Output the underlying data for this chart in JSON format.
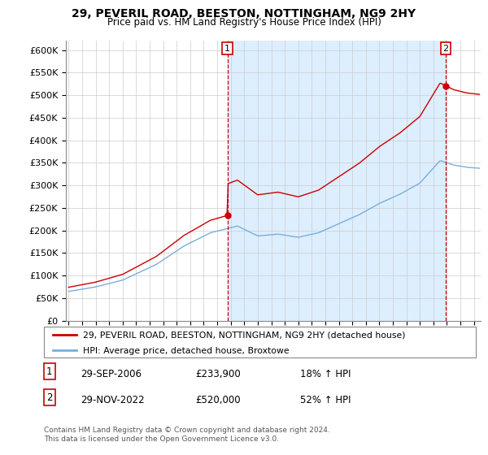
{
  "title": "29, PEVERIL ROAD, BEESTON, NOTTINGHAM, NG9 2HY",
  "subtitle": "Price paid vs. HM Land Registry's House Price Index (HPI)",
  "ylim": [
    0,
    620000
  ],
  "yticks": [
    0,
    50000,
    100000,
    150000,
    200000,
    250000,
    300000,
    350000,
    400000,
    450000,
    500000,
    550000,
    600000
  ],
  "ytick_labels": [
    "£0",
    "£50K",
    "£100K",
    "£150K",
    "£200K",
    "£250K",
    "£300K",
    "£350K",
    "£400K",
    "£450K",
    "£500K",
    "£550K",
    "£600K"
  ],
  "xlim_start": 1994.8,
  "xlim_end": 2025.5,
  "sale1_x": 2006.75,
  "sale1_y": 233900,
  "sale1_label": "1",
  "sale2_x": 2022.917,
  "sale2_y": 520000,
  "sale2_label": "2",
  "red_line_color": "#cc0000",
  "blue_line_color": "#7aaedc",
  "shade_color": "#ddeeff",
  "marker_color": "#cc0000",
  "vline_color": "#cc0000",
  "grid_color": "#cccccc",
  "background_color": "#ffffff",
  "legend_label_red": "29, PEVERIL ROAD, BEESTON, NOTTINGHAM, NG9 2HY (detached house)",
  "legend_label_blue": "HPI: Average price, detached house, Broxtowe",
  "table_row1_num": "1",
  "table_row1_date": "29-SEP-2006",
  "table_row1_price": "£233,900",
  "table_row1_hpi": "18% ↑ HPI",
  "table_row2_num": "2",
  "table_row2_date": "29-NOV-2022",
  "table_row2_price": "£520,000",
  "table_row2_hpi": "52% ↑ HPI",
  "footnote": "Contains HM Land Registry data © Crown copyright and database right 2024.\nThis data is licensed under the Open Government Licence v3.0."
}
